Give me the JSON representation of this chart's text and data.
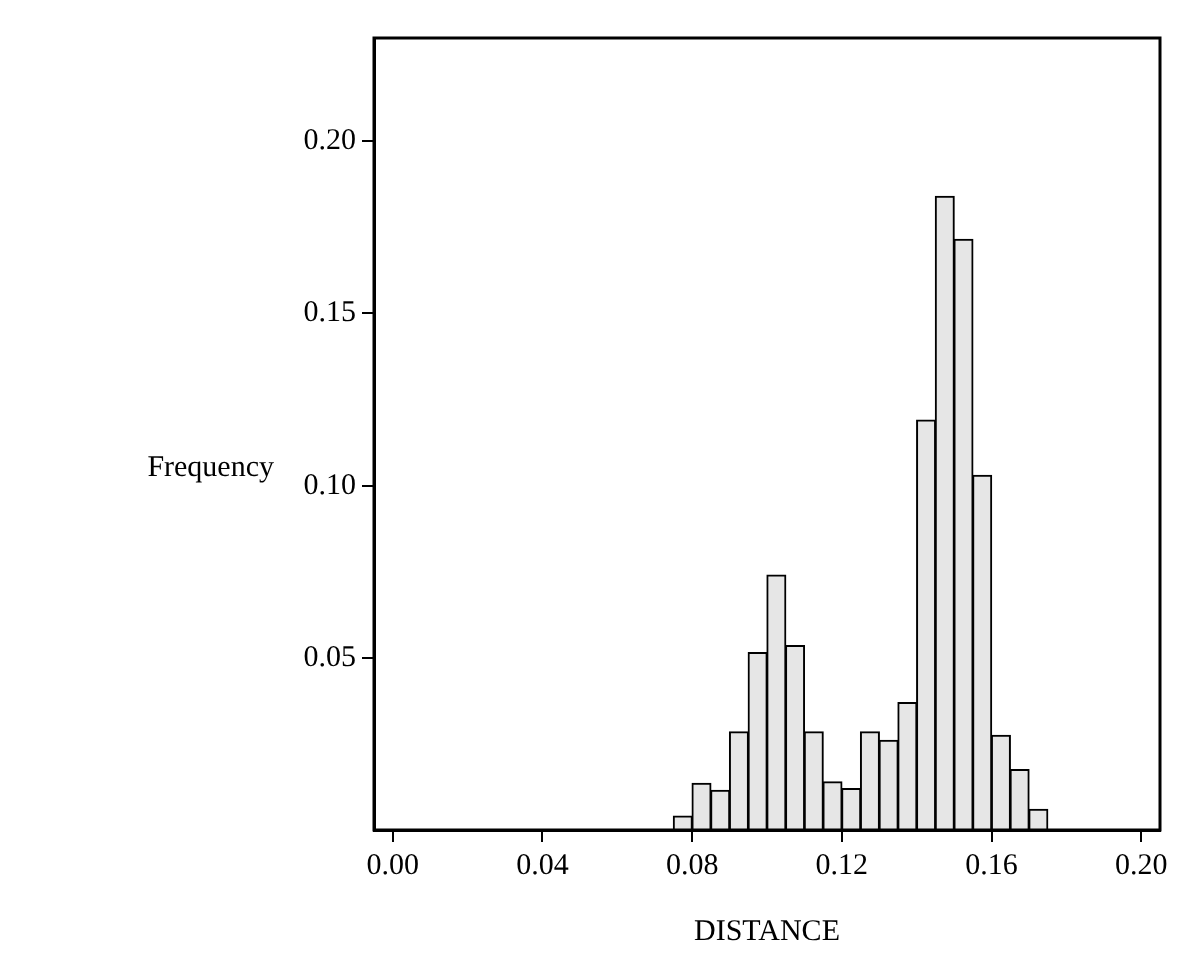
{
  "chart_data": {
    "type": "histogram",
    "xlabel": "DISTANCE",
    "ylabel": "Frequency",
    "bins": [
      0.075,
      0.08,
      0.085,
      0.09,
      0.095,
      0.1,
      0.105,
      0.11,
      0.115,
      0.12,
      0.125,
      0.13,
      0.135,
      0.14,
      0.145,
      0.15,
      0.155,
      0.16,
      0.165,
      0.17,
      0.175
    ],
    "values": [
      0.004,
      0.0135,
      0.0115,
      0.0285,
      0.0515,
      0.074,
      0.0535,
      0.0285,
      0.014,
      0.012,
      0.0285,
      0.026,
      0.037,
      0.119,
      0.184,
      0.1715,
      0.103,
      0.0275,
      0.0175,
      0.006
    ],
    "color": "#e6e6e6",
    "xlim": [
      -0.005,
      0.205
    ],
    "xticks": [
      {
        "value": 0,
        "label": "0.00"
      },
      {
        "value": 0.04,
        "label": "0.04"
      },
      {
        "value": 0.08,
        "label": "0.08"
      },
      {
        "value": 0.12,
        "label": "0.12"
      },
      {
        "value": 0.16,
        "label": "0.16"
      },
      {
        "value": 0.2,
        "label": "0.20"
      }
    ],
    "ylim": [
      0,
      0.23
    ],
    "yticks": [
      {
        "value": 0.05,
        "label": "0.05"
      },
      {
        "value": 0.1,
        "label": "0.10"
      },
      {
        "value": 0.15,
        "label": "0.15"
      },
      {
        "value": 0.2,
        "label": "0.20"
      }
    ],
    "grid": false
  }
}
